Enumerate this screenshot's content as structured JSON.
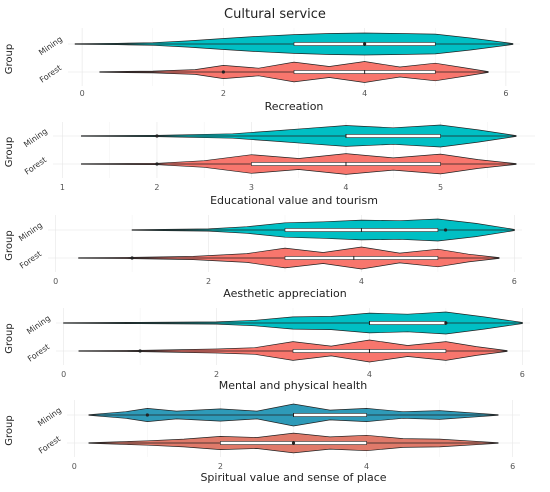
{
  "title": "Cultural service",
  "chart_data": [
    {
      "type": "violin",
      "xlabel": "Recreation",
      "ylabel": "Group",
      "xlim": [
        -0.2,
        6.2
      ],
      "xticks": [
        "0",
        "2",
        "4",
        "6"
      ],
      "groups": [
        {
          "name": "Mining",
          "color": "#00BFC4",
          "range": [
            -0.1,
            6.1
          ],
          "q1": 3.0,
          "median": 4.0,
          "q3": 5.0,
          "mean": 4.0,
          "density": [
            [
              -0.1,
              0.03
            ],
            [
              0.5,
              0.06
            ],
            [
              1.0,
              0.12
            ],
            [
              1.5,
              0.28
            ],
            [
              2.0,
              0.5
            ],
            [
              2.5,
              0.7
            ],
            [
              3.0,
              0.85
            ],
            [
              3.5,
              0.95
            ],
            [
              4.0,
              1.0
            ],
            [
              4.5,
              0.95
            ],
            [
              5.0,
              0.9
            ],
            [
              5.5,
              0.55
            ],
            [
              6.1,
              0.05
            ]
          ]
        },
        {
          "name": "Forest",
          "color": "#F8766D",
          "range": [
            0.25,
            5.75
          ],
          "q1": 3.0,
          "median": 4.0,
          "q3": 5.0,
          "mean": 2.0,
          "density": [
            [
              0.25,
              0.03
            ],
            [
              1.0,
              0.08
            ],
            [
              1.6,
              0.22
            ],
            [
              2.0,
              0.6
            ],
            [
              2.5,
              0.35
            ],
            [
              3.0,
              0.9
            ],
            [
              3.5,
              0.5
            ],
            [
              4.0,
              0.95
            ],
            [
              4.5,
              0.45
            ],
            [
              5.0,
              0.8
            ],
            [
              5.4,
              0.4
            ],
            [
              5.75,
              0.04
            ]
          ]
        }
      ]
    },
    {
      "type": "violin",
      "xlabel": "Educational value and tourism",
      "ylabel": "Group",
      "xlim": [
        0.9,
        6.0
      ],
      "xticks": [
        "1",
        "2",
        "3",
        "4",
        "5"
      ],
      "groups": [
        {
          "name": "Mining",
          "color": "#00BFC4",
          "range": [
            1.2,
            5.8
          ],
          "q1": 4.0,
          "median": 4.0,
          "q3": 5.0,
          "mean": 2.0,
          "density": [
            [
              1.2,
              0.03
            ],
            [
              2.0,
              0.06
            ],
            [
              2.8,
              0.2
            ],
            [
              3.2,
              0.45
            ],
            [
              3.6,
              0.7
            ],
            [
              4.0,
              0.95
            ],
            [
              4.5,
              0.75
            ],
            [
              5.0,
              1.0
            ],
            [
              5.4,
              0.55
            ],
            [
              5.8,
              0.04
            ]
          ]
        },
        {
          "name": "Forest",
          "color": "#F8766D",
          "range": [
            1.2,
            5.8
          ],
          "q1": 3.0,
          "median": 4.0,
          "q3": 5.0,
          "mean": 2.0,
          "density": [
            [
              1.2,
              0.03
            ],
            [
              2.0,
              0.06
            ],
            [
              2.5,
              0.3
            ],
            [
              3.0,
              0.85
            ],
            [
              3.5,
              0.5
            ],
            [
              4.0,
              0.95
            ],
            [
              4.5,
              0.55
            ],
            [
              5.0,
              0.9
            ],
            [
              5.4,
              0.4
            ],
            [
              5.8,
              0.04
            ]
          ]
        }
      ]
    },
    {
      "type": "violin",
      "xlabel": "Aesthetic appreciation",
      "ylabel": "Group",
      "xlim": [
        -0.1,
        6.1
      ],
      "xticks": [
        "0",
        "2",
        "4",
        "6"
      ],
      "groups": [
        {
          "name": "Mining",
          "color": "#00BFC4",
          "range": [
            1.0,
            6.0
          ],
          "q1": 3.0,
          "median": 4.0,
          "q3": 5.0,
          "mean": 5.1,
          "density": [
            [
              1.0,
              0.03
            ],
            [
              2.0,
              0.1
            ],
            [
              2.5,
              0.3
            ],
            [
              3.0,
              0.65
            ],
            [
              3.5,
              0.75
            ],
            [
              4.0,
              0.9
            ],
            [
              4.5,
              0.85
            ],
            [
              5.0,
              1.0
            ],
            [
              5.5,
              0.6
            ],
            [
              6.0,
              0.05
            ]
          ]
        },
        {
          "name": "Forest",
          "color": "#F8766D",
          "range": [
            0.3,
            5.8
          ],
          "q1": 3.0,
          "median": 3.9,
          "q3": 5.0,
          "mean": 1.0,
          "density": [
            [
              0.3,
              0.03
            ],
            [
              1.0,
              0.05
            ],
            [
              1.8,
              0.15
            ],
            [
              2.5,
              0.4
            ],
            [
              3.0,
              0.9
            ],
            [
              3.5,
              0.5
            ],
            [
              4.0,
              1.0
            ],
            [
              4.5,
              0.45
            ],
            [
              5.0,
              0.8
            ],
            [
              5.4,
              0.35
            ],
            [
              5.8,
              0.04
            ]
          ]
        }
      ]
    },
    {
      "type": "violin",
      "xlabel": "Mental and physical health",
      "ylabel": "Group",
      "xlim": [
        -0.1,
        6.1
      ],
      "xticks": [
        "0",
        "2",
        "4",
        "6"
      ],
      "groups": [
        {
          "name": "Mining",
          "color": "#00BFC4",
          "range": [
            0.0,
            6.0
          ],
          "q1": 4.0,
          "median": 4.0,
          "q3": 5.0,
          "mean": 5.0,
          "density": [
            [
              0.0,
              0.03
            ],
            [
              1.0,
              0.06
            ],
            [
              2.0,
              0.1
            ],
            [
              2.5,
              0.25
            ],
            [
              3.0,
              0.55
            ],
            [
              3.5,
              0.6
            ],
            [
              4.0,
              0.9
            ],
            [
              4.5,
              0.8
            ],
            [
              5.0,
              1.0
            ],
            [
              5.5,
              0.55
            ],
            [
              6.0,
              0.05
            ]
          ]
        },
        {
          "name": "Forest",
          "color": "#F8766D",
          "range": [
            0.2,
            5.8
          ],
          "q1": 3.0,
          "median": 4.0,
          "q3": 5.0,
          "mean": 1.0,
          "density": [
            [
              0.2,
              0.03
            ],
            [
              1.0,
              0.05
            ],
            [
              2.0,
              0.18
            ],
            [
              2.5,
              0.3
            ],
            [
              3.0,
              0.85
            ],
            [
              3.5,
              0.45
            ],
            [
              4.0,
              1.0
            ],
            [
              4.5,
              0.5
            ],
            [
              5.0,
              0.85
            ],
            [
              5.4,
              0.4
            ],
            [
              5.8,
              0.04
            ]
          ]
        }
      ]
    },
    {
      "type": "violin",
      "xlabel": "Spiritual value and sense of place",
      "ylabel": "Group",
      "xlim": [
        -0.1,
        6.1
      ],
      "xticks": [
        "0",
        "2",
        "4",
        "6"
      ],
      "groups": [
        {
          "name": "Mining",
          "color": "#2E9AB8",
          "range": [
            0.2,
            5.8
          ],
          "q1": 3.0,
          "median": 3.0,
          "q3": 4.0,
          "mean": 1.0,
          "density": [
            [
              0.2,
              0.03
            ],
            [
              0.7,
              0.3
            ],
            [
              1.0,
              0.6
            ],
            [
              1.4,
              0.35
            ],
            [
              2.0,
              0.55
            ],
            [
              2.5,
              0.35
            ],
            [
              3.0,
              1.0
            ],
            [
              3.5,
              0.45
            ],
            [
              4.0,
              0.6
            ],
            [
              4.5,
              0.3
            ],
            [
              5.0,
              0.4
            ],
            [
              5.8,
              0.03
            ]
          ]
        },
        {
          "name": "Forest",
          "color": "#E07A6A",
          "range": [
            0.2,
            5.8
          ],
          "q1": 2.0,
          "median": 3.0,
          "q3": 4.0,
          "mean": 3.0,
          "density": [
            [
              0.2,
              0.03
            ],
            [
              1.0,
              0.2
            ],
            [
              1.5,
              0.35
            ],
            [
              2.0,
              0.6
            ],
            [
              2.5,
              0.5
            ],
            [
              3.0,
              0.9
            ],
            [
              3.5,
              0.55
            ],
            [
              4.0,
              0.7
            ],
            [
              4.5,
              0.4
            ],
            [
              5.0,
              0.35
            ],
            [
              5.8,
              0.03
            ]
          ]
        }
      ]
    }
  ]
}
